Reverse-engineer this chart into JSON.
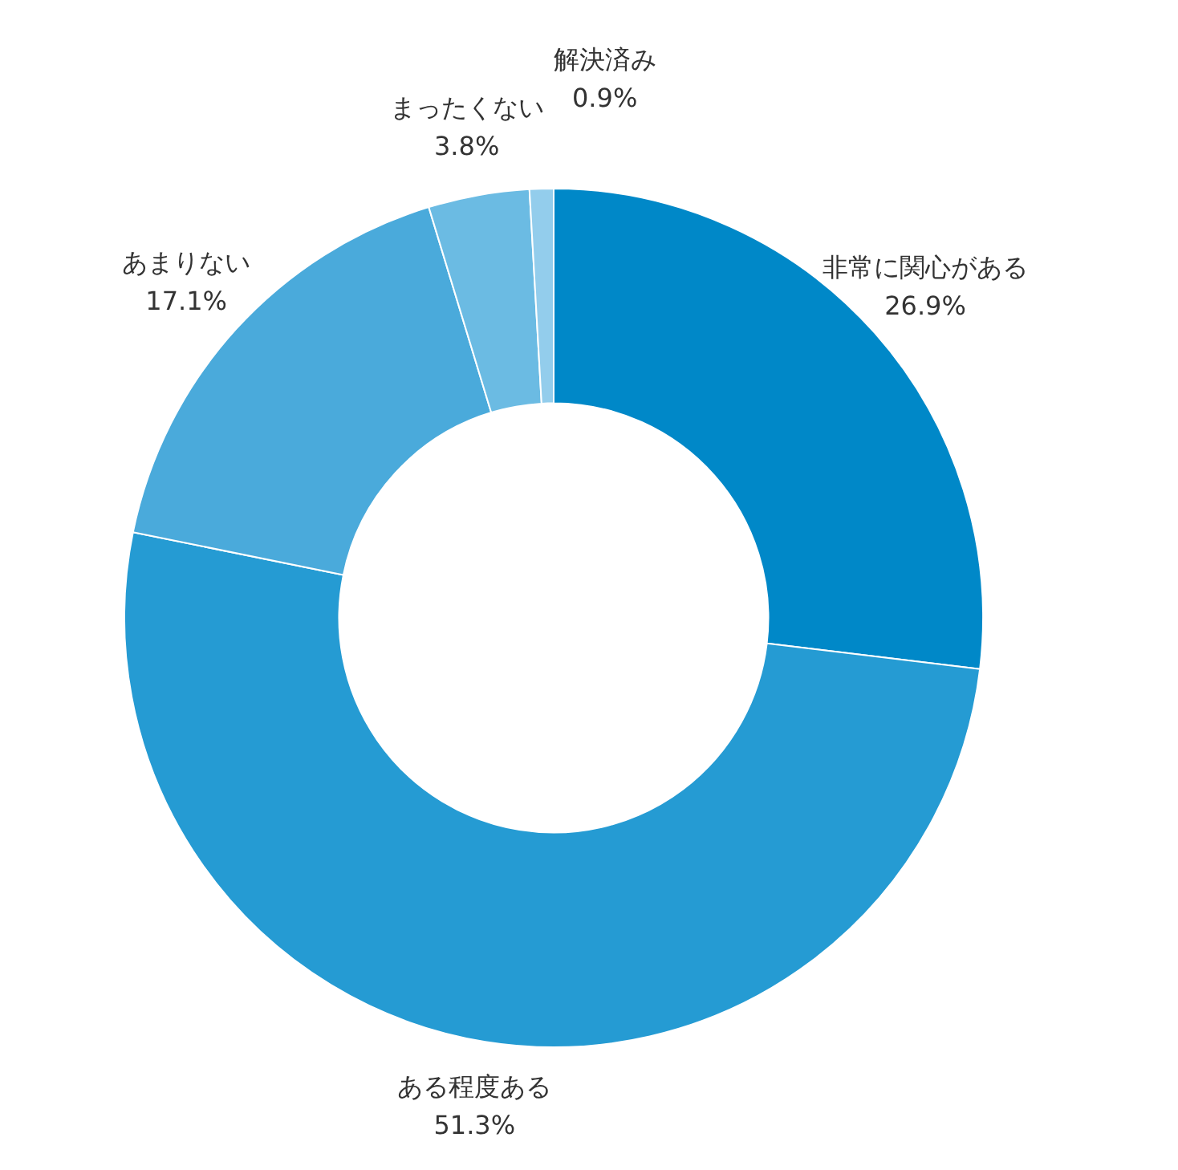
{
  "chart_data": {
    "type": "donut",
    "categories": [
      "非常に関心がある",
      "ある程度ある",
      "あまりない",
      "まったくない",
      "解決済み"
    ],
    "values": [
      26.9,
      51.3,
      17.1,
      3.8,
      0.9
    ],
    "value_labels": [
      "26.9%",
      "51.3%",
      "17.1%",
      "3.8%",
      "0.9%"
    ],
    "colors": [
      "#0088c8",
      "#259bd3",
      "#4aaadb",
      "#6bbbe3",
      "#93cdec"
    ],
    "legend": false
  }
}
